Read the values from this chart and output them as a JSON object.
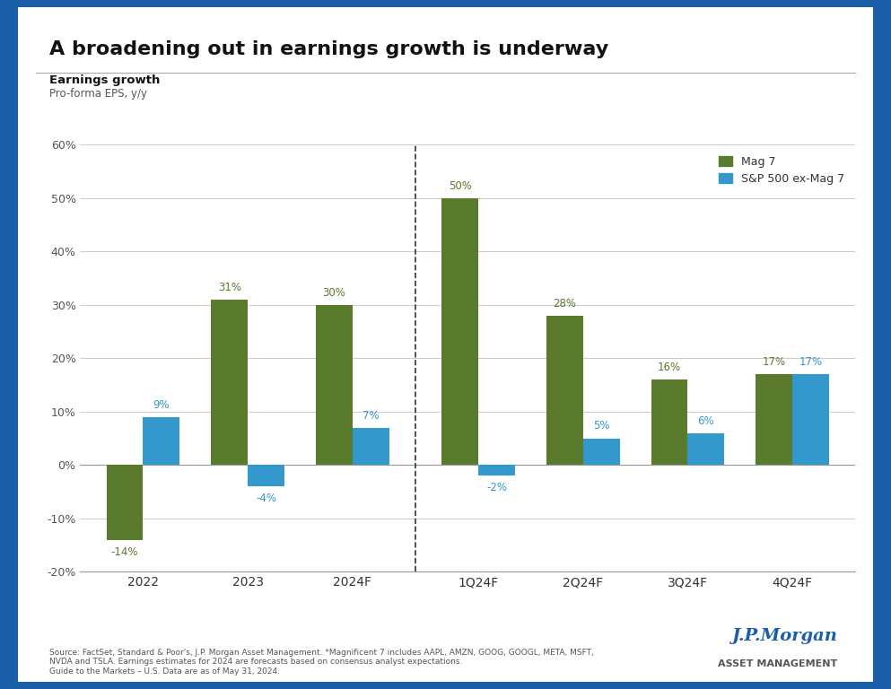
{
  "title": "A broadening out in earnings growth is underway",
  "subtitle1": "Earnings growth",
  "subtitle2": "Pro-forma EPS, y/y",
  "categories": [
    "2022",
    "2023",
    "2024F",
    "1Q24F",
    "2Q24F",
    "3Q24F",
    "4Q24F"
  ],
  "mag7": [
    -14,
    31,
    30,
    50,
    28,
    16,
    17
  ],
  "sp500": [
    9,
    -4,
    7,
    -2,
    5,
    6,
    17
  ],
  "mag7_color": "#5a7a2e",
  "sp500_color": "#3399cc",
  "ylim": [
    -20,
    60
  ],
  "yticks": [
    -20,
    -10,
    0,
    10,
    20,
    30,
    40,
    50,
    60
  ],
  "ytick_labels": [
    "-20%",
    "-10%",
    "0%",
    "10%",
    "20%",
    "30%",
    "40%",
    "50%",
    "60%"
  ],
  "background_color": "#ffffff",
  "outer_border_color": "#1a5fa8",
  "legend_labels": [
    "Mag 7",
    "S&P 500 ex-Mag 7"
  ],
  "source_text": "Source: FactSet, Standard & Poor's, J.P. Morgan Asset Management. *Magnificent 7 includes AAPL, AMZN, GOOG, GOOGL, META, MSFT,\nNVDA and TSLA. Earnings estimates for 2024 are forecasts based on consensus analyst expectations.\nGuide to the Markets – U.S. Data are as of May 31, 2024.",
  "jpmorgan_text": "J.P.Morgan",
  "asset_mgmt_text": "ASSET MANAGEMENT",
  "bar_width": 0.35,
  "label_fontsize": 8.5,
  "title_fontsize": 16,
  "tick_fontsize": 9
}
